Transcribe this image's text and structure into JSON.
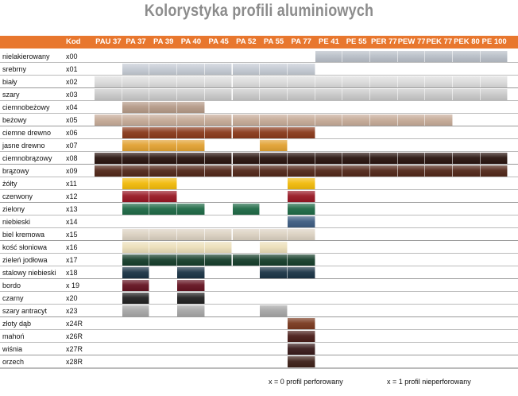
{
  "title": "Kolorystyka profili aluminiowych",
  "header": {
    "kod_label": "Kod",
    "profiles": [
      "PAU 37",
      "PA 37",
      "PA 39",
      "PA 40",
      "PA 45",
      "PA 52",
      "PA 55",
      "PA 77",
      "PE 41",
      "PE 55",
      "PER 77",
      "PEW 77",
      "PEK 77",
      "PEK 80",
      "PE 100"
    ]
  },
  "colors": [
    {
      "name": "nielakierowany",
      "code": "x00",
      "color": "#b9bfc8",
      "profiles": [
        8,
        9,
        10,
        11,
        12,
        13,
        14
      ]
    },
    {
      "name": "srebrny",
      "code": "x01",
      "color": "#c4cad3",
      "profiles": [
        1,
        2,
        3,
        4,
        5,
        6,
        7
      ]
    },
    {
      "name": "biały",
      "code": "x02",
      "color": "#dcdcdc",
      "profiles": [
        0,
        1,
        2,
        3,
        4,
        5,
        6,
        7,
        8,
        9,
        10,
        11,
        12,
        13,
        14
      ]
    },
    {
      "name": "szary",
      "code": "x03",
      "color": "#c9c9c9",
      "profiles": [
        0,
        1,
        2,
        3,
        4,
        5,
        6,
        7,
        8,
        9,
        10,
        11,
        12,
        13,
        14
      ]
    },
    {
      "name": "ciemnobeżowy",
      "code": "x04",
      "color": "#b59a88",
      "profiles": [
        1,
        2,
        3
      ]
    },
    {
      "name": "beżowy",
      "code": "x05",
      "color": "#c6ab98",
      "profiles": [
        0,
        1,
        2,
        3,
        4,
        5,
        6,
        7,
        8,
        9,
        10,
        11,
        12
      ]
    },
    {
      "name": "ciemne drewno",
      "code": "x06",
      "color": "#8a3a1c",
      "profiles": [
        1,
        2,
        3,
        4,
        5,
        6,
        7
      ]
    },
    {
      "name": "jasne drewno",
      "code": "x07",
      "color": "#e2a233",
      "profiles": [
        1,
        2,
        3,
        6
      ]
    },
    {
      "name": "ciemnobrązowy",
      "code": "x08",
      "color": "#2a1510",
      "profiles": [
        0,
        1,
        2,
        3,
        4,
        5,
        6,
        7,
        8,
        9,
        10,
        11,
        12,
        13,
        14
      ]
    },
    {
      "name": "brązowy",
      "code": "x09",
      "color": "#52281a",
      "profiles": [
        0,
        1,
        2,
        3,
        4,
        5,
        6,
        7,
        8,
        9,
        10,
        11,
        12,
        13,
        14
      ]
    },
    {
      "name": "żółty",
      "code": "x11",
      "color": "#f2bb0c",
      "profiles": [
        1,
        2,
        7
      ]
    },
    {
      "name": "czerwony",
      "code": "x12",
      "color": "#981825",
      "profiles": [
        1,
        2,
        7
      ]
    },
    {
      "name": "zielony",
      "code": "x13",
      "color": "#1f6a46",
      "profiles": [
        1,
        2,
        3,
        5,
        7
      ]
    },
    {
      "name": "niebieski",
      "code": "x14",
      "color": "#3e5d82",
      "profiles": [
        7
      ]
    },
    {
      "name": "biel kremowa",
      "code": "x15",
      "color": "#dcd2c2",
      "profiles": [
        1,
        2,
        3,
        4,
        5,
        6,
        7
      ]
    },
    {
      "name": "kość słoniowa",
      "code": "x16",
      "color": "#ecdfba",
      "profiles": [
        1,
        2,
        3,
        4,
        6
      ]
    },
    {
      "name": "zieleń jodłowa",
      "code": "x17",
      "color": "#173f2c",
      "profiles": [
        1,
        2,
        3,
        4,
        5,
        6,
        7
      ]
    },
    {
      "name": "stalowy niebieski",
      "code": "x18",
      "color": "#1b3446",
      "profiles": [
        1,
        3,
        6,
        7
      ]
    },
    {
      "name": "bordo",
      "code": "x 19",
      "color": "#651422",
      "profiles": [
        1,
        3
      ]
    },
    {
      "name": "czarny",
      "code": "x20",
      "color": "#222222",
      "profiles": [
        1,
        3
      ]
    },
    {
      "name": "szary antracyt",
      "code": "x23",
      "color": "#a7a7a7",
      "profiles": [
        1,
        3,
        6
      ]
    },
    {
      "name": "złoty dąb",
      "code": "x24R",
      "color": "#7a3a20",
      "profiles": [
        7
      ]
    },
    {
      "name": "mahoń",
      "code": "x26R",
      "color": "#4a1e1a",
      "profiles": [
        7
      ]
    },
    {
      "name": "wiśnia",
      "code": "x27R",
      "color": "#3a1c1c",
      "profiles": [
        7
      ]
    },
    {
      "name": "orzech",
      "code": "x28R",
      "color": "#3e2119",
      "profiles": [
        7
      ]
    }
  ],
  "legend": {
    "perforated": "x = 0 profil perforowany",
    "nonperforated": "x = 1 profil nieperforowany"
  },
  "accent": "#e8772e"
}
